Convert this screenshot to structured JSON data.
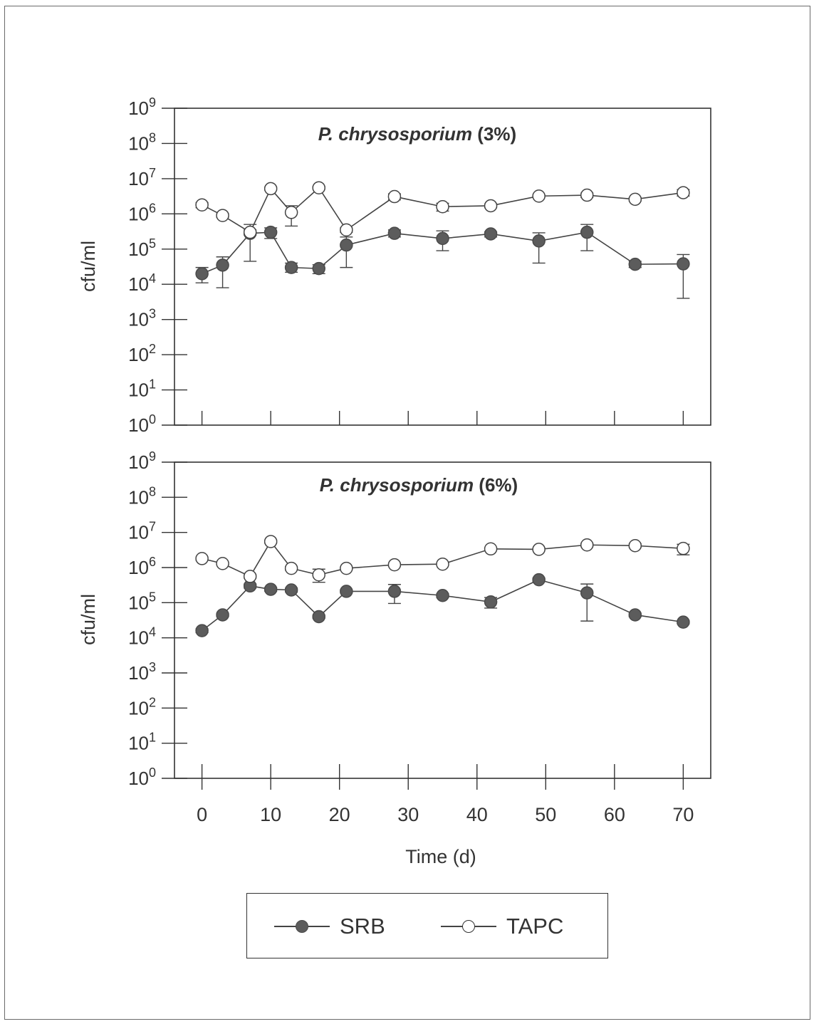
{
  "chart_data": [
    {
      "type": "line",
      "title": "P. chrysosporium (3%)",
      "title_italic": "P. chrysosporium",
      "title_suffix": "(3%)",
      "ylabel": "cfu/ml",
      "xlabel": "",
      "y_scale": "log",
      "ylim": [
        1,
        1000000000
      ],
      "xlim": [
        -4,
        74
      ],
      "grid": false,
      "series": [
        {
          "name": "SRB",
          "marker": "filled-circle",
          "x": [
            0,
            3,
            7,
            10,
            13,
            17,
            21,
            28,
            35,
            42,
            49,
            56,
            63,
            70
          ],
          "y": [
            20000,
            35000,
            280000,
            300000,
            30000,
            28000,
            130000,
            280000,
            200000,
            270000,
            170000,
            300000,
            37000,
            38000
          ],
          "err_low": [
            11000,
            8000,
            45000,
            200000,
            22000,
            20000,
            30000,
            220000,
            90000,
            220000,
            40000,
            90000,
            30000,
            4000
          ],
          "err_high": [
            30000,
            60000,
            500000,
            400000,
            40000,
            36000,
            220000,
            350000,
            330000,
            310000,
            290000,
            500000,
            45000,
            70000
          ]
        },
        {
          "name": "TAPC",
          "marker": "open-circle",
          "x": [
            0,
            3,
            7,
            10,
            13,
            17,
            21,
            28,
            35,
            42,
            49,
            56,
            63,
            70
          ],
          "y": [
            1800000,
            900000,
            300000,
            5200000,
            1100000,
            5500000,
            350000,
            3100000,
            1600000,
            1700000,
            3200000,
            3400000,
            2600000,
            4000000
          ],
          "err_low": [
            1500000,
            800000,
            250000,
            4700000,
            450000,
            5000000,
            300000,
            2500000,
            1200000,
            1500000,
            2900000,
            2900000,
            2300000,
            3200000
          ],
          "err_high": [
            2100000,
            1000000,
            350000,
            5700000,
            1700000,
            6000000,
            400000,
            3700000,
            2000000,
            1900000,
            3500000,
            3900000,
            2900000,
            4900000
          ]
        }
      ]
    },
    {
      "type": "line",
      "title": "P. chrysosporium (6%)",
      "title_italic": "P. chrysosporium",
      "title_suffix": "(6%)",
      "ylabel": "cfu/ml",
      "xlabel": "Time (d)",
      "y_scale": "log",
      "ylim": [
        1,
        1000000000
      ],
      "xlim": [
        -4,
        74
      ],
      "xticks": [
        "0",
        "10",
        "20",
        "30",
        "40",
        "50",
        "60",
        "70"
      ],
      "grid": false,
      "series": [
        {
          "name": "SRB",
          "marker": "filled-circle",
          "x": [
            0,
            3,
            7,
            10,
            13,
            17,
            21,
            28,
            35,
            42,
            49,
            56,
            63,
            70
          ],
          "y": [
            16000,
            45000,
            300000,
            240000,
            230000,
            40000,
            210000,
            210000,
            160000,
            105000,
            450000,
            190000,
            45000,
            28000
          ],
          "err_low": [
            14000,
            40000,
            260000,
            210000,
            200000,
            36000,
            190000,
            95000,
            140000,
            70000,
            400000,
            30000,
            40000,
            25000
          ],
          "err_high": [
            18000,
            50000,
            340000,
            270000,
            260000,
            44000,
            230000,
            330000,
            180000,
            140000,
            500000,
            340000,
            50000,
            31000
          ]
        },
        {
          "name": "TAPC",
          "marker": "open-circle",
          "x": [
            0,
            3,
            7,
            10,
            13,
            17,
            21,
            28,
            35,
            42,
            49,
            56,
            63,
            70
          ],
          "y": [
            1800000,
            1300000,
            560000,
            5500000,
            950000,
            620000,
            950000,
            1200000,
            1250000,
            3400000,
            3300000,
            4400000,
            4200000,
            3500000
          ],
          "err_low": [
            1600000,
            1200000,
            500000,
            5000000,
            850000,
            380000,
            900000,
            1100000,
            1150000,
            3100000,
            3000000,
            3900000,
            3700000,
            2300000
          ],
          "err_high": [
            2000000,
            1400000,
            620000,
            6000000,
            1050000,
            900000,
            1000000,
            1300000,
            1350000,
            3700000,
            3600000,
            4900000,
            4800000,
            4600000
          ]
        }
      ]
    }
  ],
  "legend": {
    "position": "bottom-center",
    "items": [
      {
        "label": "SRB",
        "marker": "filled-circle"
      },
      {
        "label": "TAPC",
        "marker": "open-circle"
      }
    ]
  },
  "colors": {
    "line": "#444444",
    "filled_marker": "#5c5c5c",
    "open_marker": "#ffffff",
    "axis": "#333333"
  }
}
